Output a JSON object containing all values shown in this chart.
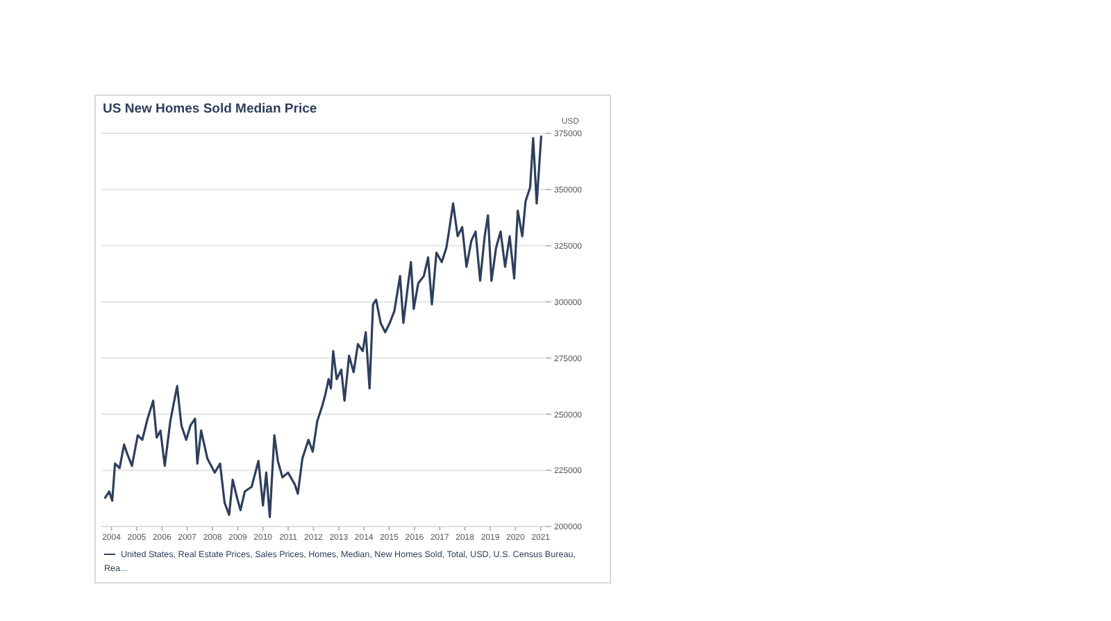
{
  "chart_data": {
    "type": "line",
    "title": "US New Homes Sold Median Price",
    "ylabel": "USD",
    "x": [
      2003.73,
      2003.91,
      2004.03,
      2004.14,
      2004.32,
      2004.5,
      2004.62,
      2004.81,
      2005.04,
      2005.22,
      2005.43,
      2005.65,
      2005.79,
      2005.94,
      2006.11,
      2006.33,
      2006.6,
      2006.77,
      2006.96,
      2007.13,
      2007.31,
      2007.4,
      2007.55,
      2007.8,
      2008.09,
      2008.3,
      2008.48,
      2008.66,
      2008.8,
      2008.98,
      2009.11,
      2009.28,
      2009.55,
      2009.82,
      2010.0,
      2010.13,
      2010.27,
      2010.45,
      2010.59,
      2010.77,
      2010.99,
      2011.26,
      2011.38,
      2011.56,
      2011.8,
      2011.97,
      2012.15,
      2012.33,
      2012.46,
      2012.6,
      2012.69,
      2012.78,
      2012.92,
      2013.1,
      2013.23,
      2013.41,
      2013.59,
      2013.76,
      2013.95,
      2014.07,
      2014.22,
      2014.36,
      2014.48,
      2014.66,
      2014.84,
      2015.02,
      2015.2,
      2015.43,
      2015.56,
      2015.74,
      2015.86,
      2015.97,
      2016.15,
      2016.37,
      2016.54,
      2016.69,
      2016.87,
      2017.08,
      2017.26,
      2017.35,
      2017.53,
      2017.71,
      2017.89,
      2018.06,
      2018.25,
      2018.42,
      2018.6,
      2018.78,
      2018.91,
      2019.05,
      2019.23,
      2019.41,
      2019.59,
      2019.77,
      2019.95,
      2020.09,
      2020.27,
      2020.4,
      2020.58,
      2020.7,
      2020.84,
      2021.02
    ],
    "series": [
      {
        "name": "United States, Real Estate Prices, Sales Prices, Homes, Median, New Homes Sold, Total, USD, U.S. Census Bureau, Rea...",
        "color": "#2e3f5c",
        "values": [
          212500,
          215600,
          211500,
          228000,
          226000,
          236500,
          232500,
          227000,
          240600,
          238600,
          248000,
          256000,
          239600,
          242700,
          227000,
          246900,
          262500,
          245000,
          238600,
          245000,
          248000,
          228000,
          242700,
          230200,
          224000,
          228000,
          210600,
          205200,
          220800,
          212500,
          207300,
          215600,
          217700,
          229200,
          209400,
          224000,
          204200,
          240600,
          229200,
          221900,
          224000,
          218800,
          214600,
          230200,
          238600,
          233300,
          246900,
          253100,
          258300,
          265600,
          261500,
          278100,
          265600,
          269800,
          256000,
          276000,
          268700,
          281200,
          278100,
          286500,
          261500,
          298900,
          301000,
          290600,
          286500,
          290600,
          295800,
          311500,
          290600,
          307300,
          317700,
          296900,
          308300,
          311500,
          319800,
          298900,
          321900,
          317700,
          324000,
          330200,
          343800,
          329200,
          333300,
          315600,
          327100,
          331300,
          309400,
          329200,
          338500,
          309400,
          324000,
          331300,
          315600,
          329200,
          310400,
          340600,
          329200,
          344800,
          351000,
          372900,
          343800,
          374000
        ]
      }
    ],
    "xlim": [
      2003.6,
      2021.2
    ],
    "xticks": [
      2004,
      2005,
      2006,
      2007,
      2008,
      2009,
      2010,
      2011,
      2012,
      2013,
      2014,
      2015,
      2016,
      2017,
      2018,
      2019,
      2020,
      2021
    ],
    "ylim": [
      200000,
      375000
    ],
    "yticks": [
      200000,
      225000,
      250000,
      275000,
      300000,
      325000,
      350000,
      375000
    ],
    "grid": "y",
    "legend": "bottom",
    "marker": "none",
    "line_style": "solid"
  }
}
